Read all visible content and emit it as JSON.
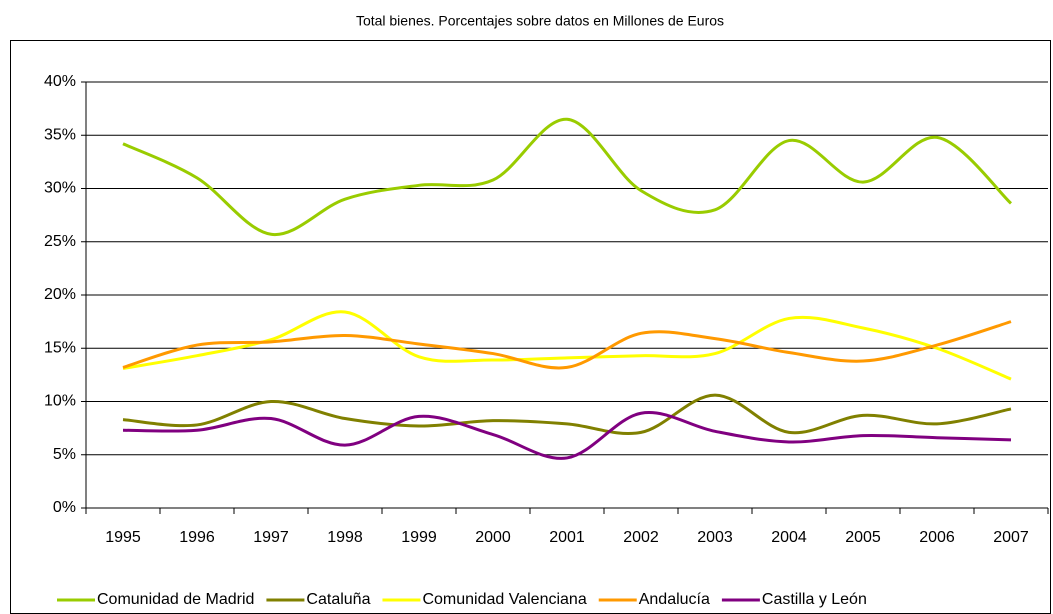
{
  "chart_data": {
    "type": "line",
    "title": "Total bienes. Porcentajes sobre datos en Millones de Euros",
    "categories": [
      "1995",
      "1996",
      "1997",
      "1998",
      "1999",
      "2000",
      "2001",
      "2002",
      "2003",
      "2004",
      "2005",
      "2006",
      "2007"
    ],
    "series": [
      {
        "name": "Comunidad de Madrid",
        "color": "#99cc00",
        "values": [
          34.2,
          31,
          25.7,
          29,
          30.3,
          30.8,
          36.5,
          29.8,
          28,
          34.5,
          30.6,
          34.8,
          28.6
        ]
      },
      {
        "name": "Cataluña",
        "color": "#808000",
        "values": [
          8.3,
          7.8,
          10,
          8.4,
          7.7,
          8.2,
          7.9,
          7.1,
          10.6,
          7.1,
          8.7,
          7.9,
          9.3
        ]
      },
      {
        "name": "Comunidad Valenciana",
        "color": "#ffff00",
        "values": [
          13.1,
          14.3,
          15.8,
          18.4,
          14.2,
          13.9,
          14.1,
          14.3,
          14.5,
          17.8,
          16.9,
          15,
          12.1
        ]
      },
      {
        "name": "Andalucía",
        "color": "#ff9900",
        "values": [
          13.2,
          15.3,
          15.6,
          16.2,
          15.4,
          14.5,
          13.2,
          16.4,
          15.9,
          14.6,
          13.8,
          15.3,
          17.5
        ]
      },
      {
        "name": "Castilla y León",
        "color": "#800080",
        "values": [
          7.3,
          7.3,
          8.4,
          5.9,
          8.6,
          6.9,
          4.7,
          8.9,
          7.2,
          6.2,
          6.8,
          6.6,
          6.4
        ]
      }
    ],
    "ylim": [
      0,
      40
    ],
    "yticks": [
      {
        "value": 0,
        "label": "0%"
      },
      {
        "value": 5,
        "label": "5%"
      },
      {
        "value": 10,
        "label": "10%"
      },
      {
        "value": 15,
        "label": "15%"
      },
      {
        "value": 20,
        "label": "20%"
      },
      {
        "value": 25,
        "label": "25%"
      },
      {
        "value": 30,
        "label": "30%"
      },
      {
        "value": 35,
        "label": "35%"
      },
      {
        "value": 40,
        "label": "40%"
      }
    ],
    "grid": true,
    "smooth": true,
    "legend": "bottom"
  }
}
